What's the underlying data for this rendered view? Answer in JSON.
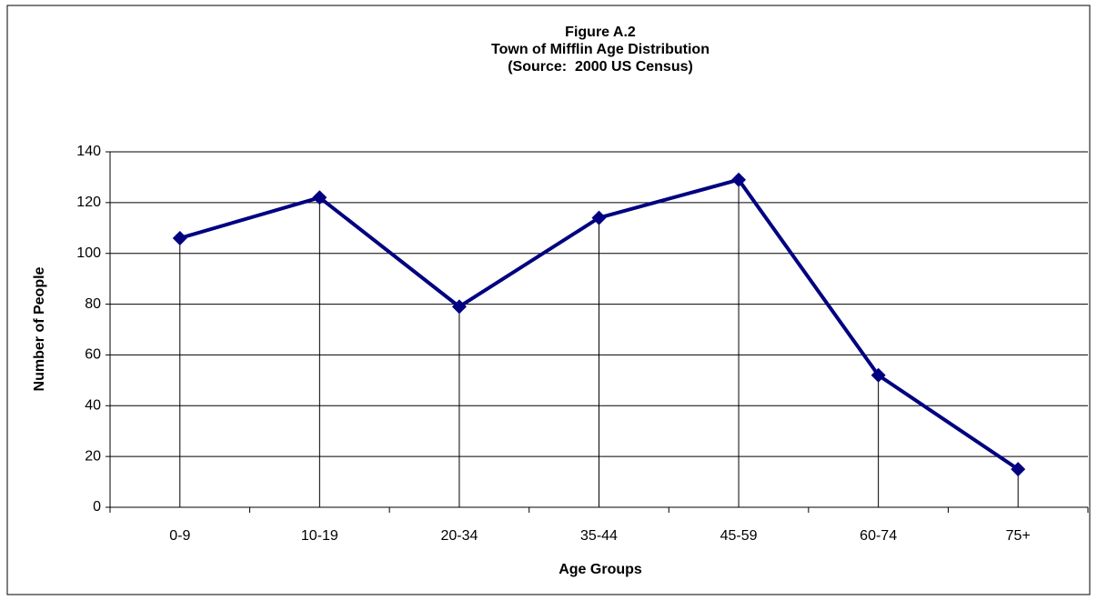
{
  "chart_data": {
    "type": "line",
    "title": "Figure A.2",
    "subtitle": "Town of Mifflin Age Distribution",
    "source": "(Source:  2000 US Census)",
    "x_label": "Age Groups",
    "y_label": "Number of People",
    "categories": [
      "0-9",
      "10-19",
      "20-34",
      "35-44",
      "45-59",
      "60-74",
      "75+"
    ],
    "values": [
      106,
      122,
      79,
      114,
      129,
      52,
      15
    ],
    "color": "#000080",
    "ylim": [
      0,
      140
    ],
    "yticks": [
      0,
      20,
      40,
      60,
      80,
      100,
      120,
      140
    ],
    "grid": true,
    "drop_lines": true
  }
}
